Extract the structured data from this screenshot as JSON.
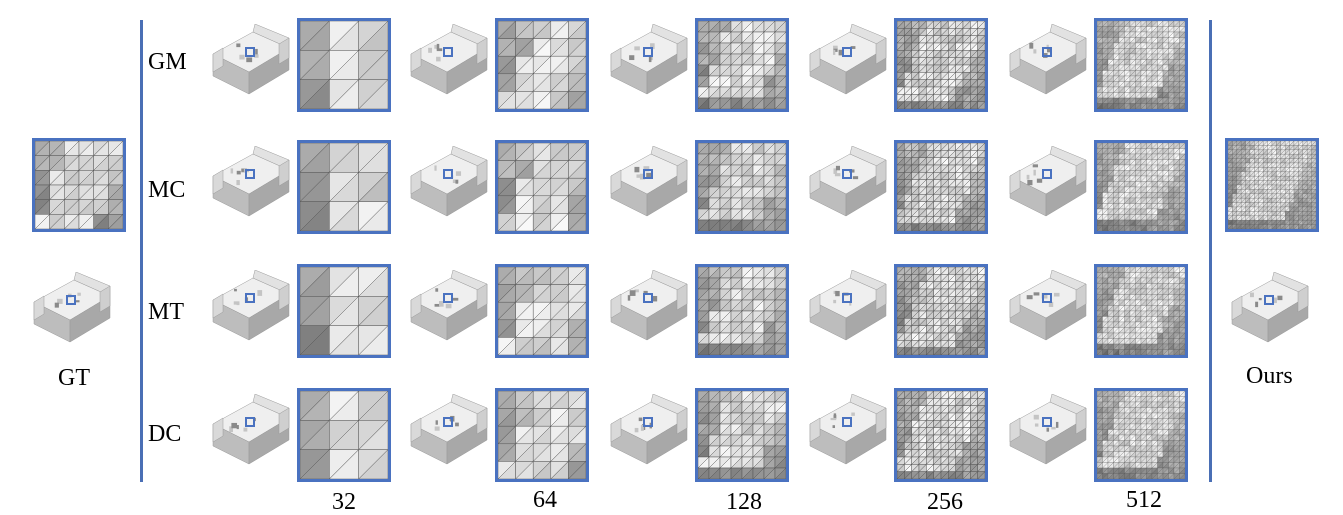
{
  "methods": [
    "GM",
    "MC",
    "MT",
    "DC"
  ],
  "resolutions": [
    "32",
    "64",
    "128",
    "256",
    "512"
  ],
  "left_label": "GT",
  "right_label": "Ours",
  "colors": {
    "accent": "#4a72c0",
    "divider": "#4a6fb5",
    "surface": "#d6d6d6"
  },
  "icons": {
    "model": "sofa-icon",
    "inset_box": "highlight-box-icon"
  }
}
